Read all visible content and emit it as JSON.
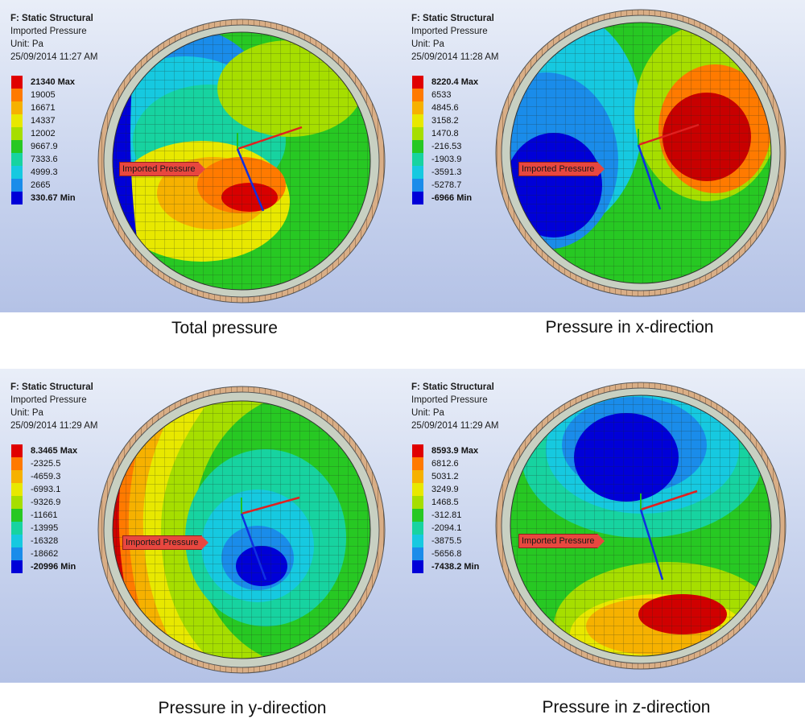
{
  "panels": [
    {
      "header": {
        "system": "F: Static Structural",
        "result": "Imported Pressure",
        "unit": "Unit: Pa",
        "timestamp": "25/09/2014 11:27 AM"
      },
      "legend": [
        {
          "label": "21340 Max",
          "color": "#e00000",
          "bold": true
        },
        {
          "label": "19005",
          "color": "#ff7a00",
          "bold": false
        },
        {
          "label": "16671",
          "color": "#f6b100",
          "bold": false
        },
        {
          "label": "14337",
          "color": "#e8e800",
          "bold": false
        },
        {
          "label": "12002",
          "color": "#a6de00",
          "bold": false
        },
        {
          "label": "9667.9",
          "color": "#27c823",
          "bold": false
        },
        {
          "label": "7333.6",
          "color": "#17d3a0",
          "bold": false
        },
        {
          "label": "4999.3",
          "color": "#16c9e0",
          "bold": false
        },
        {
          "label": "2665",
          "color": "#1a8cea",
          "bold": false
        },
        {
          "label": "330.67 Min",
          "color": "#0000d8",
          "bold": true
        }
      ],
      "callout": "Imported Pressure",
      "caption": "Total pressure"
    },
    {
      "header": {
        "system": "F: Static Structural",
        "result": "Imported Pressure",
        "unit": "Unit: Pa",
        "timestamp": "25/09/2014 11:28 AM"
      },
      "legend": [
        {
          "label": "8220.4 Max",
          "color": "#e00000",
          "bold": true
        },
        {
          "label": "6533",
          "color": "#ff7a00",
          "bold": false
        },
        {
          "label": "4845.6",
          "color": "#f6b100",
          "bold": false
        },
        {
          "label": "3158.2",
          "color": "#e8e800",
          "bold": false
        },
        {
          "label": "1470.8",
          "color": "#a6de00",
          "bold": false
        },
        {
          "label": "-216.53",
          "color": "#27c823",
          "bold": false
        },
        {
          "label": "-1903.9",
          "color": "#17d3a0",
          "bold": false
        },
        {
          "label": "-3591.3",
          "color": "#16c9e0",
          "bold": false
        },
        {
          "label": "-5278.7",
          "color": "#1a8cea",
          "bold": false
        },
        {
          "label": "-6966 Min",
          "color": "#0000d8",
          "bold": true
        }
      ],
      "callout": "Imported Pressure",
      "caption": "Pressure in x-direction"
    },
    {
      "header": {
        "system": "F: Static Structural",
        "result": "Imported Pressure",
        "unit": "Unit: Pa",
        "timestamp": "25/09/2014 11:29 AM"
      },
      "legend": [
        {
          "label": "8.3465 Max",
          "color": "#e00000",
          "bold": true
        },
        {
          "label": "-2325.5",
          "color": "#ff7a00",
          "bold": false
        },
        {
          "label": "-4659.3",
          "color": "#f6b100",
          "bold": false
        },
        {
          "label": "-6993.1",
          "color": "#e8e800",
          "bold": false
        },
        {
          "label": "-9326.9",
          "color": "#a6de00",
          "bold": false
        },
        {
          "label": "-11661",
          "color": "#27c823",
          "bold": false
        },
        {
          "label": "-13995",
          "color": "#17d3a0",
          "bold": false
        },
        {
          "label": "-16328",
          "color": "#16c9e0",
          "bold": false
        },
        {
          "label": "-18662",
          "color": "#1a8cea",
          "bold": false
        },
        {
          "label": "-20996 Min",
          "color": "#0000d8",
          "bold": true
        }
      ],
      "callout": "Imported Pressure",
      "caption": "Pressure in y-direction"
    },
    {
      "header": {
        "system": "F: Static Structural",
        "result": "Imported Pressure",
        "unit": "Unit: Pa",
        "timestamp": "25/09/2014 11:29 AM"
      },
      "legend": [
        {
          "label": "8593.9 Max",
          "color": "#e00000",
          "bold": true
        },
        {
          "label": "6812.6",
          "color": "#ff7a00",
          "bold": false
        },
        {
          "label": "5031.2",
          "color": "#f6b100",
          "bold": false
        },
        {
          "label": "3249.9",
          "color": "#e8e800",
          "bold": false
        },
        {
          "label": "1468.5",
          "color": "#a6de00",
          "bold": false
        },
        {
          "label": "-312.81",
          "color": "#27c823",
          "bold": false
        },
        {
          "label": "-2094.1",
          "color": "#17d3a0",
          "bold": false
        },
        {
          "label": "-3875.5",
          "color": "#16c9e0",
          "bold": false
        },
        {
          "label": "-5656.8",
          "color": "#1a8cea",
          "bold": false
        },
        {
          "label": "-7438.2 Min",
          "color": "#0000d8",
          "bold": true
        }
      ],
      "callout": "Imported Pressure",
      "caption": "Pressure in z-direction"
    }
  ]
}
